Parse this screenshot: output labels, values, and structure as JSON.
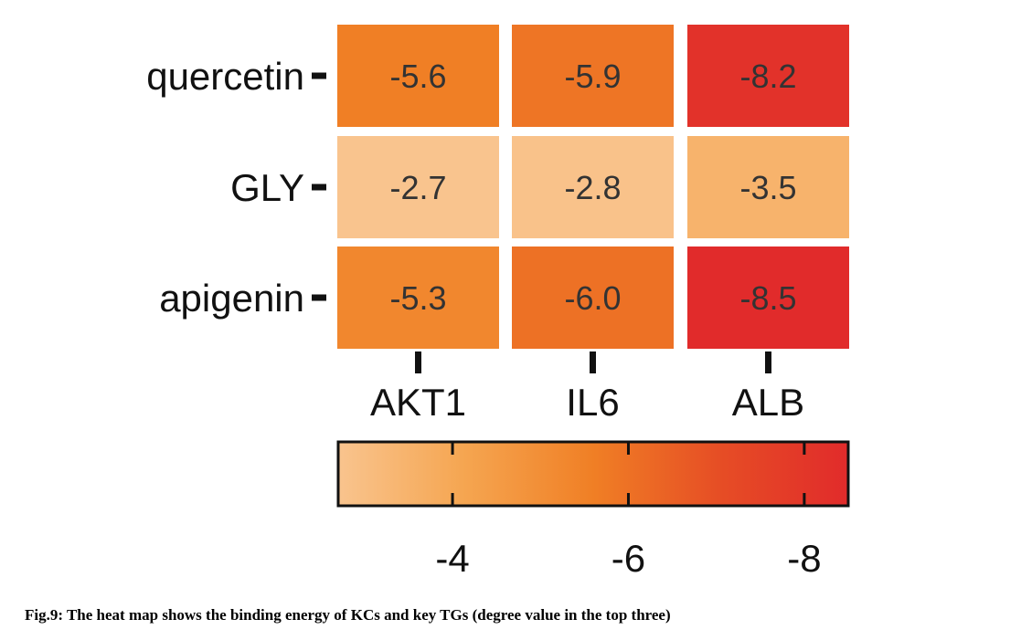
{
  "chart_data": {
    "type": "heatmap",
    "rows": [
      "quercetin",
      "GLY",
      "apigenin"
    ],
    "columns": [
      "AKT1",
      "IL6",
      "ALB"
    ],
    "values": [
      [
        -5.6,
        -5.9,
        -8.2
      ],
      [
        -2.7,
        -2.8,
        -3.5
      ],
      [
        -5.3,
        -6.0,
        -8.5
      ]
    ],
    "cell_labels": [
      [
        "-5.6",
        "-5.9",
        "-8.2"
      ],
      [
        "-2.7",
        "-2.8",
        "-3.5"
      ],
      [
        "-5.3",
        "-6.0",
        "-8.5"
      ]
    ],
    "colorbar": {
      "range": [
        -2.7,
        -8.5
      ],
      "ticks": [
        -4,
        -6,
        -8
      ],
      "tick_labels": [
        "-4",
        "-6",
        "-8"
      ],
      "colors": [
        "#f9c48e",
        "#f5a550",
        "#f07f25",
        "#e64d25",
        "#e12b2b"
      ],
      "placement": "bottom"
    }
  },
  "caption": "Fig.9: The heat map shows the binding energy of KCs and key TGs (degree value in the top three)"
}
